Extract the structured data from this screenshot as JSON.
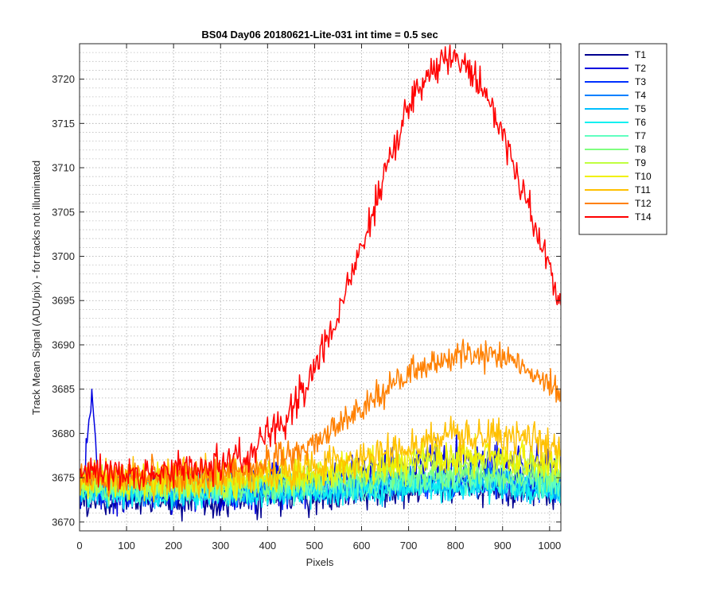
{
  "chart_data": {
    "type": "line",
    "title": "BS04 Day06 20180621-Lite-031 int time = 0.5 sec",
    "xlabel": "Pixels",
    "ylabel": "Track Mean Signal (ADU/pix) - for tracks not illuminated",
    "xlim": [
      0,
      1024
    ],
    "ylim": [
      3669,
      3724
    ],
    "xticks": [
      0,
      100,
      200,
      300,
      400,
      500,
      600,
      700,
      800,
      900,
      1000
    ],
    "yticks": [
      3670,
      3675,
      3680,
      3685,
      3690,
      3695,
      3700,
      3705,
      3710,
      3715,
      3720
    ],
    "grid": true,
    "minor_grid": true,
    "legend_position": "outside-top-right",
    "series": [
      {
        "name": "T1",
        "color": "#00008f",
        "base": 3672.5,
        "amp": 1.5,
        "noise": 1.3,
        "peak": 830
      },
      {
        "name": "T2",
        "color": "#0000e0",
        "base": 3673.5,
        "amp": 3.5,
        "noise": 1.5,
        "peak": 830,
        "spike": {
          "center": 25,
          "width": 12,
          "height": 9
        }
      },
      {
        "name": "T3",
        "color": "#0030ff",
        "base": 3673.5,
        "amp": 1.2,
        "noise": 1.1,
        "peak": 830
      },
      {
        "name": "T4",
        "color": "#0080ff",
        "base": 3673.8,
        "amp": 1.0,
        "noise": 1.0,
        "peak": 830
      },
      {
        "name": "T5",
        "color": "#00c0ff",
        "base": 3673.3,
        "amp": 0.8,
        "noise": 1.0,
        "peak": 830
      },
      {
        "name": "T6",
        "color": "#10f0f0",
        "base": 3673.0,
        "amp": 0.8,
        "noise": 1.0,
        "peak": 830
      },
      {
        "name": "T7",
        "color": "#60ffc0",
        "base": 3673.6,
        "amp": 1.2,
        "noise": 1.0,
        "peak": 830
      },
      {
        "name": "T8",
        "color": "#80ff80",
        "base": 3674.0,
        "amp": 1.5,
        "noise": 1.0,
        "peak": 830
      },
      {
        "name": "T9",
        "color": "#c0ff40",
        "base": 3674.4,
        "amp": 2.5,
        "noise": 1.1,
        "peak": 830
      },
      {
        "name": "T10",
        "color": "#f0f000",
        "base": 3674.6,
        "amp": 3.0,
        "noise": 1.2,
        "peak": 830
      },
      {
        "name": "T11",
        "color": "#ffc000",
        "base": 3675.0,
        "amp": 4.5,
        "noise": 1.3,
        "peak": 850
      },
      {
        "name": "T12",
        "color": "#ff8000",
        "base": 3675.2,
        "amp": 14.0,
        "noise": 1.1,
        "peak": 830
      },
      {
        "name": "T14",
        "color": "#ff0000",
        "base": 3675.6,
        "amp": 46.5,
        "noise": 1.2,
        "peak": 790
      }
    ]
  }
}
